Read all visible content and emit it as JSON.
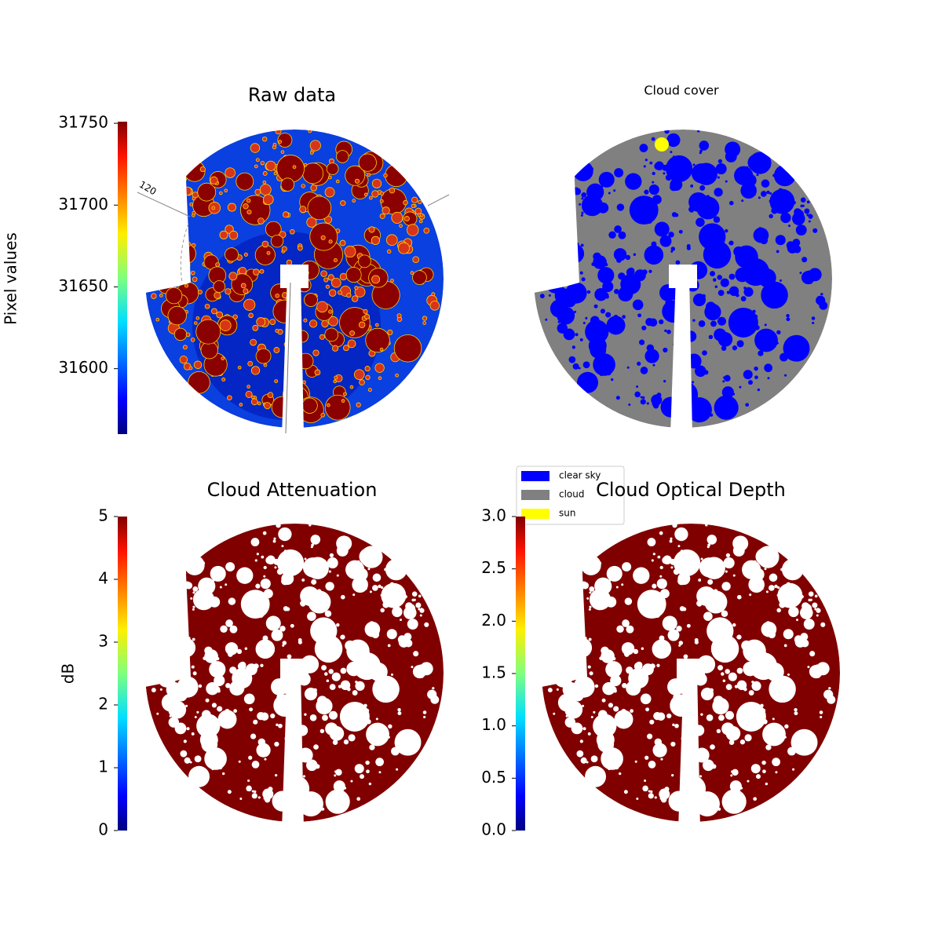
{
  "chart_data": [
    {
      "type": "image",
      "title": "Raw data",
      "annotations": [
        "120"
      ],
      "colorbar": {
        "label": "Pixel values",
        "colormap": "jet",
        "ylim": [
          31560,
          31751
        ],
        "yticks": [
          31600,
          31650,
          31700,
          31750
        ]
      }
    },
    {
      "type": "image",
      "title": "Cloud cover",
      "series": [
        {
          "name": "clear sky",
          "color": "#0000ff"
        },
        {
          "name": "cloud",
          "color": "#808080"
        },
        {
          "name": "sun",
          "color": "#ffff00"
        }
      ]
    },
    {
      "type": "image",
      "title": "Cloud Attenuation",
      "colorbar": {
        "label": "dB",
        "colormap": "jet",
        "ylim": [
          0,
          5
        ],
        "yticks": [
          0,
          1,
          2,
          3,
          4,
          5
        ]
      }
    },
    {
      "type": "image",
      "title": "Cloud Optical Depth",
      "colorbar": {
        "colormap": "jet",
        "ylim": [
          0,
          3
        ],
        "yticks": [
          {
            "value": 0,
            "label": "0.0"
          },
          0.5,
          {
            "value": 1,
            "label": "1.0"
          },
          1.5,
          {
            "value": 2,
            "label": "2.0"
          },
          2.5,
          {
            "value": 3,
            "label": "3.0"
          }
        ]
      }
    }
  ]
}
